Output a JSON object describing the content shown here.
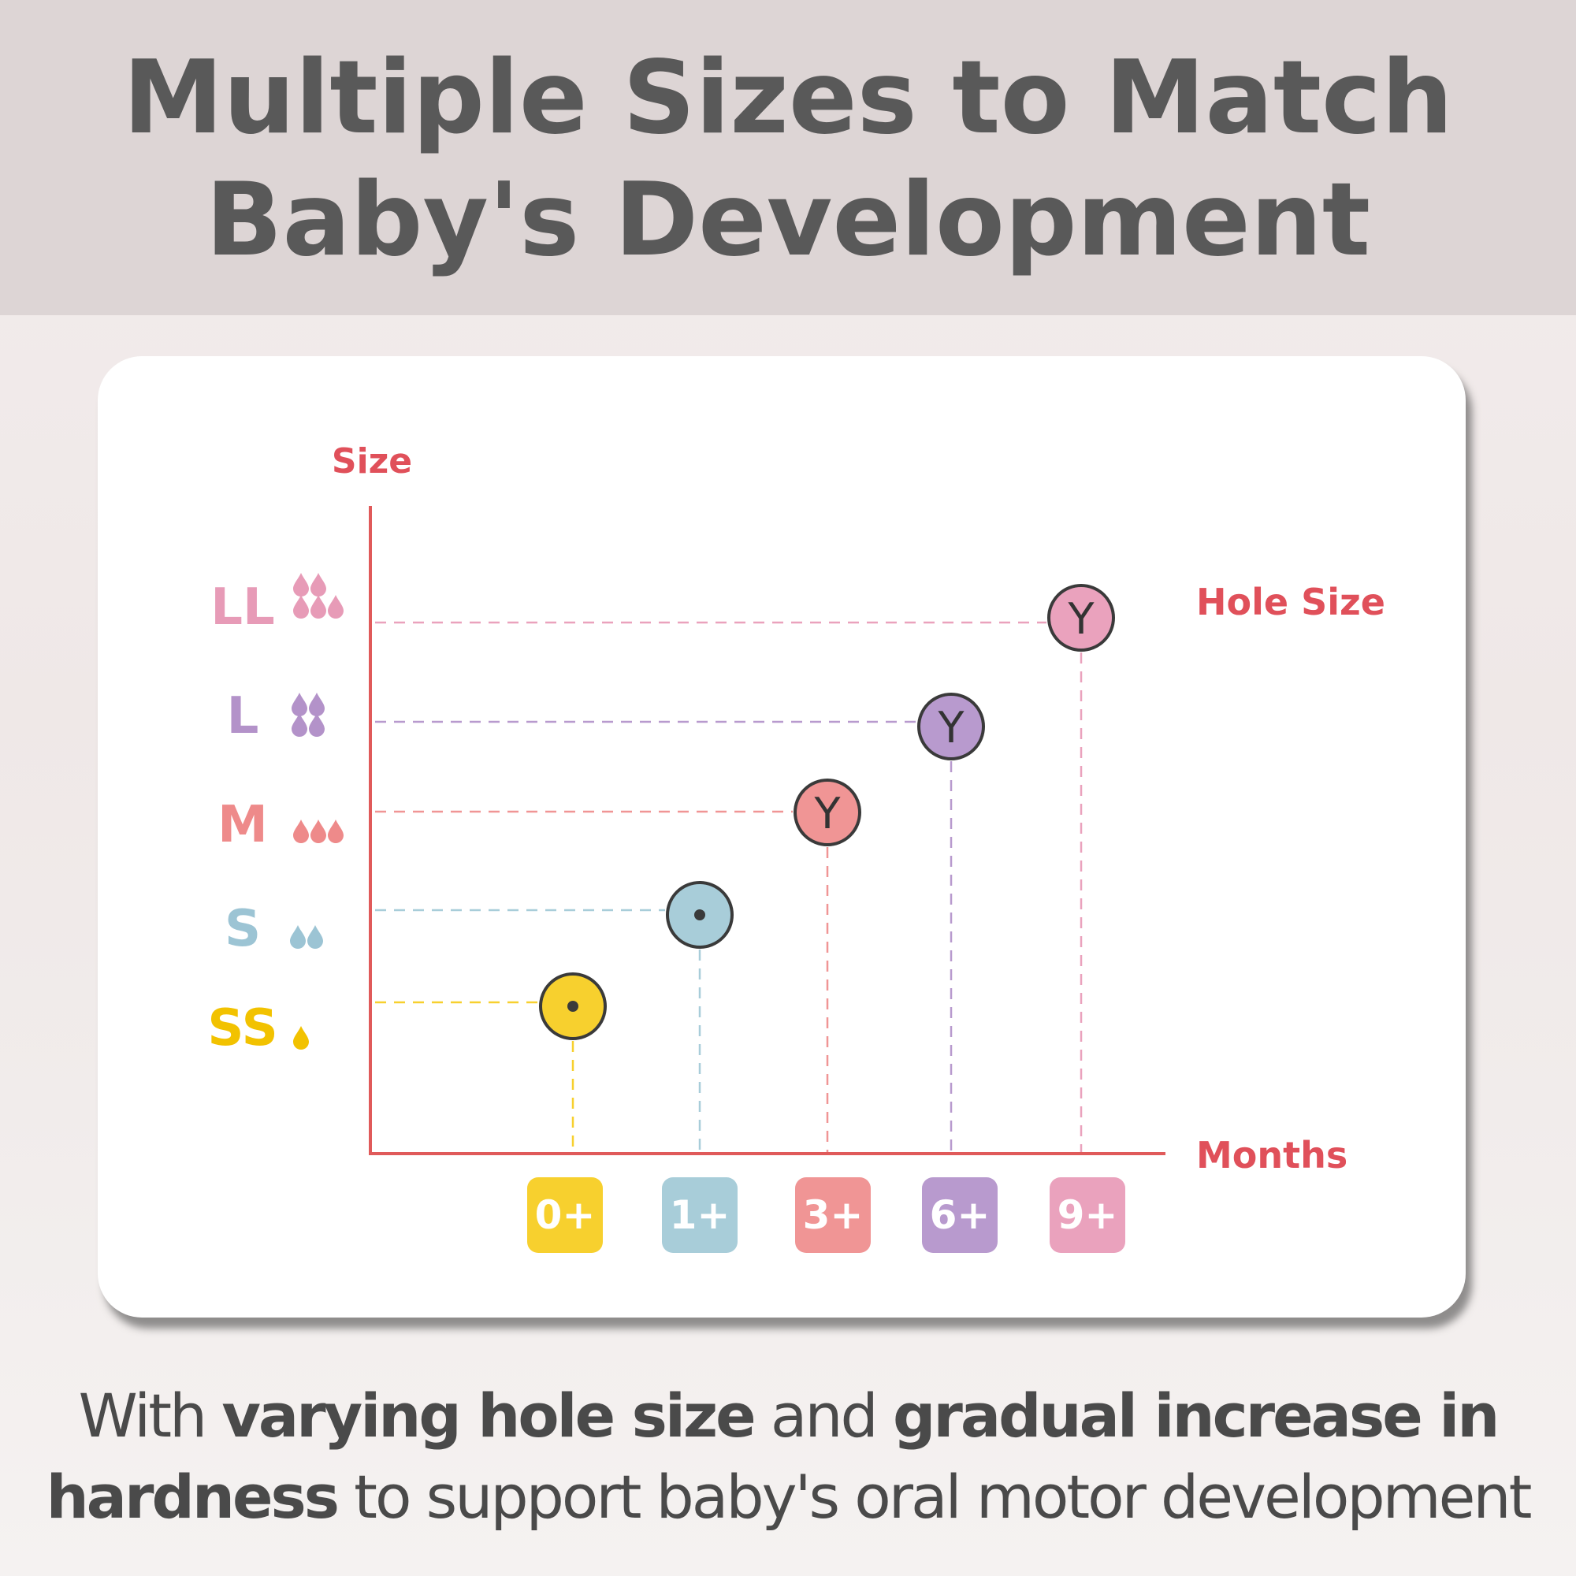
{
  "header": {
    "title_line1": "Multiple Sizes to Match",
    "title_line2": "Baby's Development"
  },
  "chart_data": {
    "type": "scatter",
    "ylabel": "Size",
    "xlabel": "Months",
    "annotation": "Hole Size",
    "y_categories": [
      "SS",
      "S",
      "M",
      "L",
      "LL"
    ],
    "x_categories": [
      "0+",
      "1+",
      "3+",
      "6+",
      "9+"
    ],
    "points": [
      {
        "x": "0+",
        "y": "SS",
        "hole": "dot",
        "color": "#f7d02e",
        "drops": 1
      },
      {
        "x": "1+",
        "y": "S",
        "hole": "dot",
        "color": "#a8cdd9",
        "drops": 2
      },
      {
        "x": "3+",
        "y": "M",
        "hole": "Y",
        "color": "#f09595",
        "drops": 3
      },
      {
        "x": "6+",
        "y": "L",
        "hole": "Y",
        "color": "#b89ace",
        "drops": 4
      },
      {
        "x": "9+",
        "y": "LL",
        "hole": "Y",
        "color": "#eaa2bd",
        "drops": 5
      }
    ],
    "axis_color": "#e05a5a",
    "label_color": "#e0505a"
  },
  "caption": {
    "line1": [
      {
        "text": "With ",
        "bold": false
      },
      {
        "text": "varying hole size",
        "bold": true
      },
      {
        "text": " and ",
        "bold": false
      },
      {
        "text": "gradual increase in",
        "bold": true
      }
    ],
    "line2": [
      {
        "text": "hardness",
        "bold": true
      },
      {
        "text": " to support baby's oral motor development",
        "bold": false
      }
    ]
  }
}
